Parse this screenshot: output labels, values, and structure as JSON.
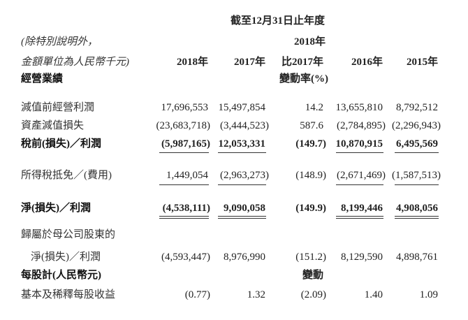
{
  "header": {
    "period": "截至12月31日止年度",
    "note_line1": "(除特別說明外，",
    "note_line2": "金額單位為人民幣千元)",
    "change_year": "2018年",
    "columns": [
      "2018年",
      "2017年",
      "比2017年",
      "2016年",
      "2015年"
    ],
    "change_rate": "變動率(%)",
    "section": "經營業績"
  },
  "rows": [
    {
      "label": "減值前經營利潤",
      "values": [
        "17,696,553",
        "15,497,854",
        "14.2",
        "13,655,810",
        "8,792,512"
      ]
    },
    {
      "label": "資產減值損失",
      "values": [
        "(23,683,718)",
        "(3,444,523)",
        "587.6",
        "(2,784,895)",
        "(2,296,943)"
      ]
    },
    {
      "label": "稅前(損失)／利潤",
      "values": [
        "(5,987,165)",
        "12,053,331",
        "(149.7)",
        "10,870,915",
        "6,495,569"
      ]
    },
    {
      "label": "所得稅抵免／(費用)",
      "values": [
        "1,449,054",
        "(2,963,273)",
        "(148.9)",
        "(2,671,469)",
        "(1,587,513)"
      ]
    },
    {
      "label": "淨(損失)／利潤",
      "values": [
        "(4,538,111)",
        "9,090,058",
        "(149.9)",
        "8,199,446",
        "4,908,056"
      ]
    },
    {
      "label": "歸屬於母公司股東的",
      "label2": "淨(損失)／利潤",
      "values": [
        "(4,593,447)",
        "8,976,990",
        "(151.2)",
        "8,129,590",
        "4,898,761"
      ]
    }
  ],
  "per_share": {
    "section": "每股計(人民幣元)",
    "change": "變動"
  },
  "eps": {
    "label": "基本及稀釋每股收益",
    "values": [
      "(0.77)",
      "1.32",
      "(2.09)",
      "1.40",
      "1.09"
    ]
  }
}
